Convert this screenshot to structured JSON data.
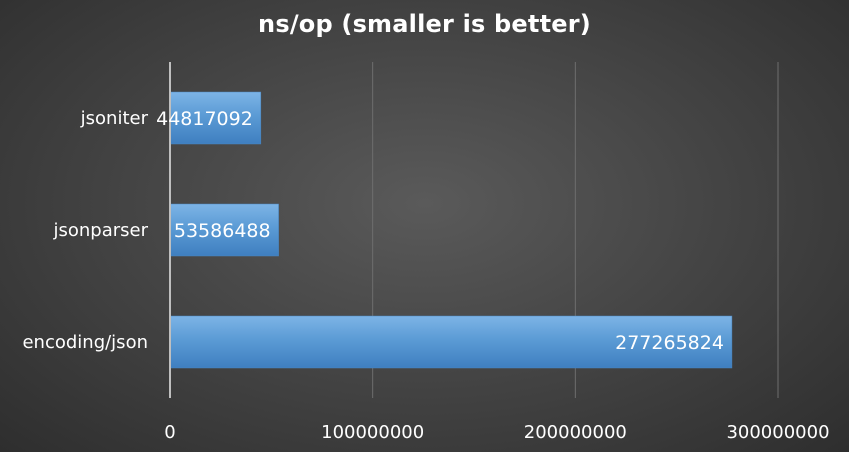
{
  "chart_data": {
    "type": "bar",
    "orientation": "horizontal",
    "title": "ns/op (smaller is better)",
    "categories": [
      "jsoniter",
      "jsonparser",
      "encoding/json"
    ],
    "values": [
      44817092,
      53586488,
      277265824
    ],
    "data_labels": [
      "44817092",
      "53586488",
      "277265824"
    ],
    "xlim": [
      0,
      300000000
    ],
    "x_ticks": [
      0,
      100000000,
      200000000,
      300000000
    ],
    "x_tick_labels": [
      "0",
      "100000000",
      "200000000",
      "300000000"
    ],
    "xlabel": "",
    "ylabel": "",
    "grid": true,
    "legend": "none",
    "bar_color": "#5b9bd5",
    "background_color": "#3f3f3f"
  }
}
